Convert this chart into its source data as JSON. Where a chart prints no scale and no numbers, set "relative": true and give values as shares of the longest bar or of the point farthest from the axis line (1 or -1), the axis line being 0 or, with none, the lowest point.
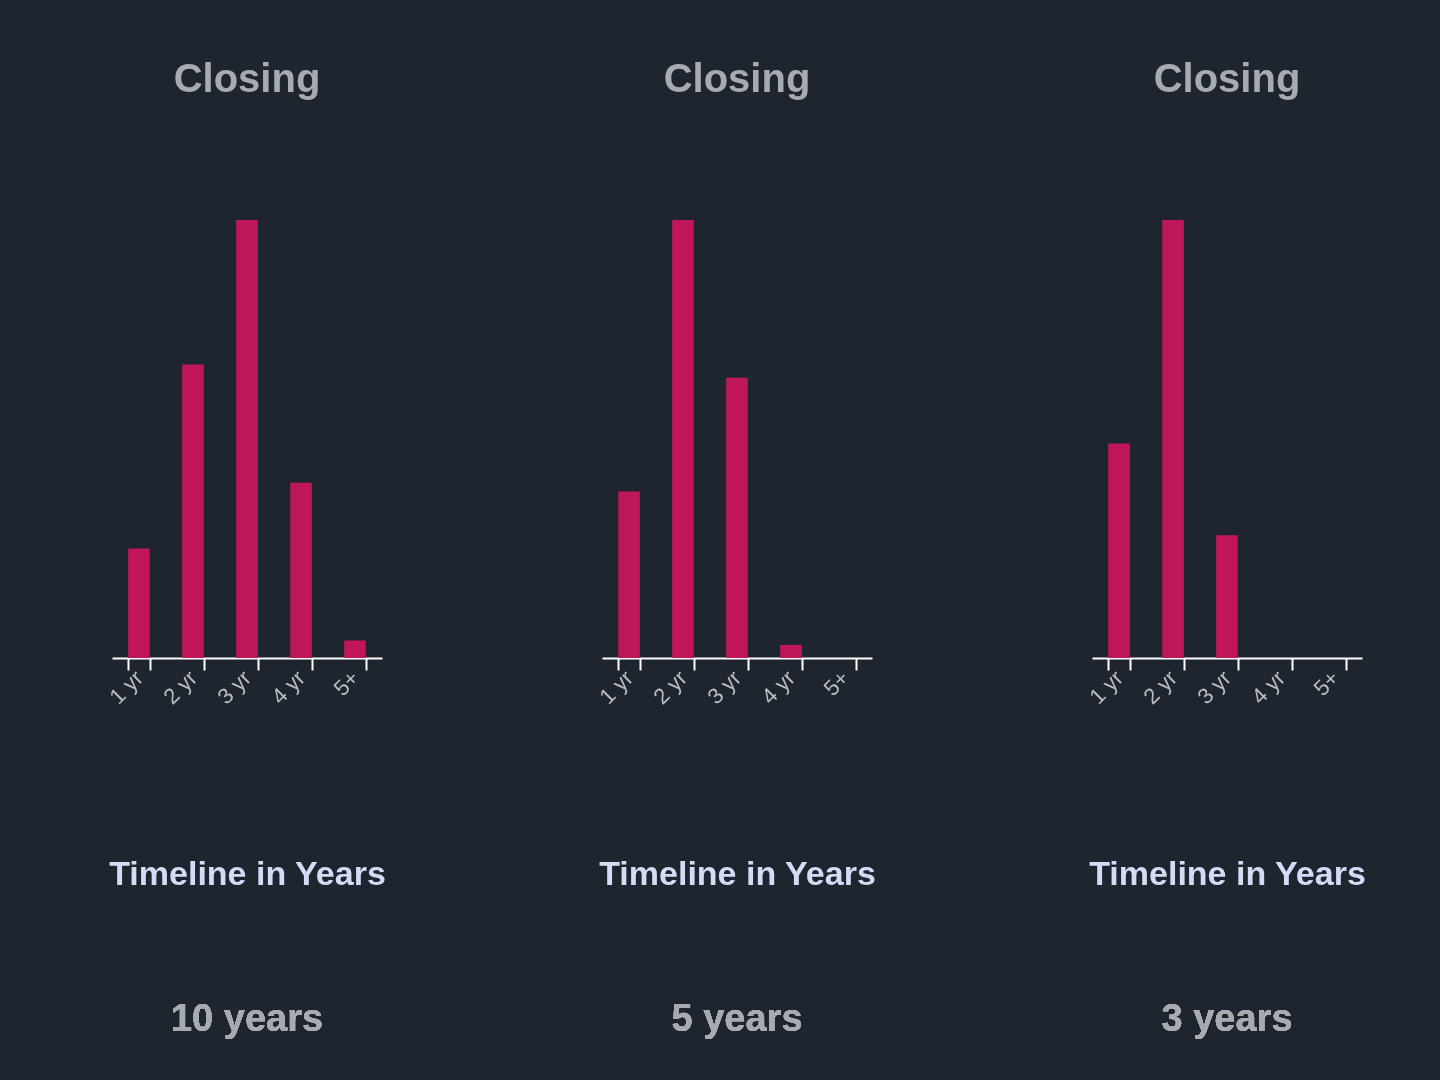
{
  "chart_data": [
    {
      "type": "bar",
      "title": "Closing",
      "xlabel": "Timeline in Years",
      "annotations": [
        "10 years"
      ],
      "relative": true,
      "color": "#c0175a",
      "categories": [
        "1 yr",
        "2 yr",
        "3 yr",
        "4 yr",
        "5+"
      ],
      "values": [
        0.25,
        0.67,
        1,
        0.4,
        0.04
      ]
    },
    {
      "type": "bar",
      "title": "Closing",
      "xlabel": "Timeline in Years",
      "annotations": [
        "5 years"
      ],
      "relative": true,
      "color": "#c0175a",
      "categories": [
        "1 yr",
        "2 yr",
        "3 yr",
        "4 yr",
        "5+"
      ],
      "values": [
        0.38,
        1,
        0.64,
        0.03,
        0
      ]
    },
    {
      "type": "bar",
      "title": "Closing",
      "xlabel": "Timeline in Years",
      "annotations": [
        "3 years"
      ],
      "relative": true,
      "color": "#c0175a",
      "categories": [
        "1 yr",
        "2 yr",
        "3 yr",
        "4 yr",
        "5+"
      ],
      "values": [
        0.49,
        1,
        0.28,
        0,
        0
      ]
    }
  ]
}
